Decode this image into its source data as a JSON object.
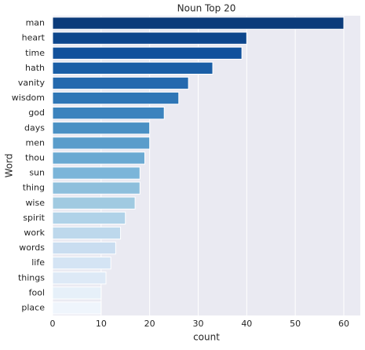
{
  "chart_data": {
    "type": "barh",
    "title": "Noun Top 20",
    "xlabel": "count",
    "ylabel": "Word",
    "categories": [
      "man",
      "heart",
      "time",
      "hath",
      "vanity",
      "wisdom",
      "god",
      "days",
      "men",
      "thou",
      "sun",
      "thing",
      "wise",
      "spirit",
      "work",
      "words",
      "life",
      "things",
      "fool",
      "place"
    ],
    "values": [
      60,
      40,
      39,
      33,
      28,
      26,
      23,
      20,
      20,
      19,
      18,
      18,
      17,
      15,
      14,
      13,
      12,
      11,
      10,
      10
    ],
    "colors": [
      "#0b3b7a",
      "#0d468c",
      "#11519c",
      "#1a5ea6",
      "#2469ae",
      "#2f76b6",
      "#3b83be",
      "#4a90c4",
      "#5a9dcb",
      "#6aa9d2",
      "#7bb5d9",
      "#8ebfdc",
      "#a0cae1",
      "#b0d2e8",
      "#bdd8ec",
      "#c9ddf0",
      "#d4e4f4",
      "#dde9f6",
      "#e6f0f9",
      "#eff5fc"
    ],
    "xlim": [
      0,
      63.4
    ],
    "xticks": [
      0,
      10,
      20,
      30,
      40,
      50,
      60
    ],
    "grid": true
  }
}
